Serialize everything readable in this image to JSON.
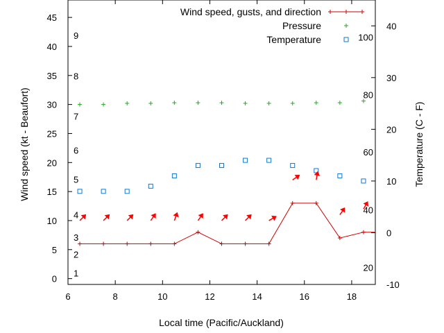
{
  "chart_data": {
    "type": "line",
    "xlabel": "Local time (Pacific/Auckland)",
    "ylabel_left": "Wind speed (kt - Beaufort)",
    "ylabel_right": "Temperature (C - F)",
    "x_range": [
      6,
      19
    ],
    "y_left_range": [
      -1,
      48
    ],
    "y_right_range": [
      -10,
      45
    ],
    "x_ticks": [
      6,
      8,
      10,
      12,
      14,
      16,
      18
    ],
    "y_left_ticks": [
      0,
      5,
      10,
      15,
      20,
      25,
      30,
      35,
      40,
      45
    ],
    "y_right_ticks": [
      -10,
      0,
      10,
      20,
      30,
      40
    ],
    "beaufort_labels": [
      {
        "text": "1",
        "kt": 1
      },
      {
        "text": "2",
        "kt": 4.2
      },
      {
        "text": "3",
        "kt": 7.1
      },
      {
        "text": "4",
        "kt": 11
      },
      {
        "text": "5",
        "kt": 17.1
      },
      {
        "text": "6",
        "kt": 22.1
      },
      {
        "text": "7",
        "kt": 28
      },
      {
        "text": "8",
        "kt": 34.9
      },
      {
        "text": "9",
        "kt": 41.9
      }
    ],
    "fahrenheit_labels": [
      {
        "text": "20",
        "celsius": -6.7
      },
      {
        "text": "40",
        "celsius": 4.4
      },
      {
        "text": "60",
        "celsius": 15.6
      },
      {
        "text": "80",
        "celsius": 26.7
      },
      {
        "text": "100",
        "celsius": 37.8
      }
    ],
    "legend_position": "top-right",
    "series": [
      {
        "name": "Wind speed, gusts, and direction",
        "kind": "line",
        "axis": "left",
        "color": "#cc0000",
        "x": [
          6.5,
          7.5,
          8.5,
          9.5,
          10.5,
          11.5,
          12.5,
          13.5,
          14.5,
          15.5,
          16.5,
          17.5,
          18.5,
          19
        ],
        "y": [
          6,
          6,
          6,
          6,
          6,
          8,
          6,
          6,
          6,
          13,
          13,
          7,
          8,
          8
        ]
      },
      {
        "name": "Pressure",
        "kind": "points",
        "marker": "plus",
        "axis": "left",
        "color": "#22aa22",
        "x": [
          6.5,
          7.5,
          8.5,
          9.5,
          10.5,
          11.5,
          12.5,
          13.5,
          14.5,
          15.5,
          16.5,
          17.5,
          18.5
        ],
        "y": [
          30,
          30,
          30.2,
          30.2,
          30.3,
          30.3,
          30.3,
          30.2,
          30.2,
          30.2,
          30.3,
          30.3,
          30.6
        ]
      },
      {
        "name": "Temperature",
        "kind": "points",
        "marker": "square",
        "axis": "right",
        "color": "#1177cc",
        "x": [
          6.5,
          7.5,
          8.5,
          9.5,
          10.5,
          11.5,
          12.5,
          13.5,
          14.5,
          15.5,
          16.5,
          17.5,
          18.5
        ],
        "y": [
          8,
          8,
          8,
          9,
          11,
          13,
          13,
          14,
          14,
          13,
          12,
          11,
          10
        ]
      }
    ],
    "wind_arrows": {
      "color": "#ff0000",
      "y_kt": 10,
      "points": [
        {
          "x": 6.5,
          "direction_deg": 225
        },
        {
          "x": 7.5,
          "direction_deg": 225
        },
        {
          "x": 8.5,
          "direction_deg": 225
        },
        {
          "x": 9.5,
          "direction_deg": 215
        },
        {
          "x": 10.5,
          "direction_deg": 200
        },
        {
          "x": 11.5,
          "direction_deg": 215
        },
        {
          "x": 12.5,
          "direction_deg": 225
        },
        {
          "x": 13.5,
          "direction_deg": 225
        },
        {
          "x": 14.5,
          "direction_deg": 240
        },
        {
          "x": 15.5,
          "direction_deg": 235,
          "y_kt": 17
        },
        {
          "x": 16.5,
          "direction_deg": 190,
          "y_kt": 17
        },
        {
          "x": 17.5,
          "direction_deg": 215,
          "y_kt": 11
        },
        {
          "x": 18.5,
          "direction_deg": 210,
          "y_kt": 12
        }
      ]
    }
  }
}
